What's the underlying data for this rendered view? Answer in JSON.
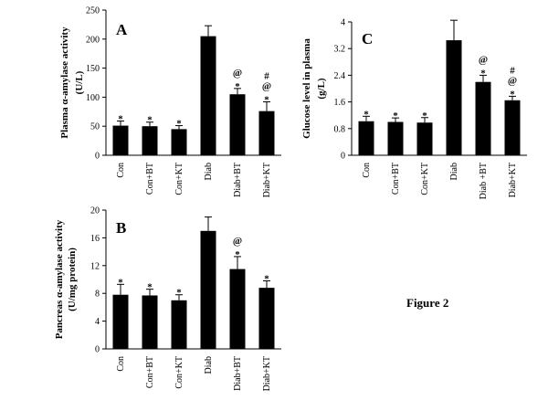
{
  "figure_label": "Figure 2",
  "chart_data": [
    {
      "panel": "A",
      "type": "bar",
      "ylabel": [
        "Plasma α-amylase activity",
        "(U/L)"
      ],
      "ylim": [
        0,
        250
      ],
      "yticks": [
        0,
        50,
        100,
        150,
        200,
        250
      ],
      "categories": [
        "Con",
        "Con+BT",
        "Con+KT",
        "Diab",
        "Diab+BT",
        "Diab+KT"
      ],
      "values": [
        51,
        50,
        45,
        205,
        105,
        76
      ],
      "errors": [
        8,
        7,
        6,
        18,
        10,
        16
      ],
      "annotations": [
        [
          "*"
        ],
        [
          "*"
        ],
        [
          "*"
        ],
        [],
        [
          "*",
          "@"
        ],
        [
          "*",
          "@",
          "#"
        ]
      ]
    },
    {
      "panel": "B",
      "type": "bar",
      "ylabel": [
        "Pancreas α-amylase activity",
        "(U/mg protein)"
      ],
      "ylim": [
        0,
        20
      ],
      "yticks": [
        0,
        4,
        8,
        12,
        16,
        20
      ],
      "categories": [
        "Con",
        "Con+BT",
        "Con+KT",
        "Diab",
        "Diab+BT",
        "Diab+KT"
      ],
      "values": [
        7.8,
        7.7,
        7.0,
        17.0,
        11.5,
        8.8
      ],
      "errors": [
        1.5,
        0.9,
        0.8,
        2.0,
        1.8,
        1.0
      ],
      "annotations": [
        [
          "*"
        ],
        [
          "*"
        ],
        [
          "*"
        ],
        [],
        [
          "*",
          "@"
        ],
        [
          "*"
        ]
      ]
    },
    {
      "panel": "C",
      "type": "bar",
      "ylabel": [
        "Glucose level in plasma",
        "(g/L)"
      ],
      "ylim": [
        0,
        4
      ],
      "yticks": [
        0,
        0.8,
        1.6,
        2.4,
        3.2,
        4
      ],
      "categories": [
        "Con",
        "Con+BT",
        "Con+KT",
        "Diab",
        "Diab +BT",
        "Diab+KT"
      ],
      "values": [
        1.02,
        1.0,
        0.98,
        3.45,
        2.2,
        1.65
      ],
      "errors": [
        0.15,
        0.12,
        0.15,
        0.6,
        0.2,
        0.12
      ],
      "annotations": [
        [
          "*"
        ],
        [
          "*"
        ],
        [
          "*"
        ],
        [],
        [
          "*",
          "@"
        ],
        [
          "*",
          "@",
          "#"
        ]
      ]
    }
  ]
}
